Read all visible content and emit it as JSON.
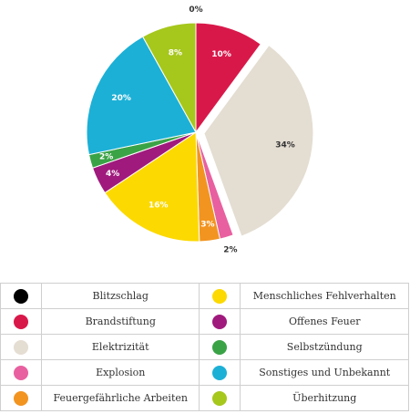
{
  "chart_data": {
    "type": "pie",
    "categories": [
      "Blitzschlag",
      "Brandstiftung",
      "Elektrizität",
      "Explosion",
      "Feuergefährliche Arbeiten",
      "Menschliches Fehlverhalten",
      "Offenes Feuer",
      "Selbstzündung",
      "Sonstiges und Unbekannt",
      "Überhitzung"
    ],
    "values": [
      0,
      10,
      34,
      2,
      3,
      16,
      4,
      2,
      20,
      8
    ],
    "value_labels": [
      "0%",
      "10%",
      "34%",
      "2%",
      "3%",
      "16%",
      "4%",
      "2%",
      "20%",
      "8%"
    ],
    "colors": [
      "#000000",
      "#d9184a",
      "#e4ddd2",
      "#e8609f",
      "#f29420",
      "#fcd900",
      "#a01a7d",
      "#3aa346",
      "#1cb0d6",
      "#a6c71c"
    ],
    "exploded": 2
  }
}
